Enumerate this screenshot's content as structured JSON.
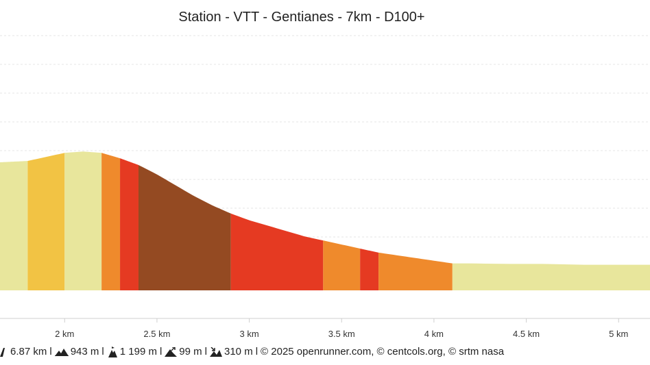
{
  "title": "Station - VTT - Gentianes - 7km - D100+",
  "chart_data": {
    "type": "area",
    "title": "Station - VTT - Gentianes - 7km - D100+",
    "xlabel": "",
    "ylabel": "",
    "x_unit": "km",
    "xlim": [
      1.65,
      5.17
    ],
    "ylim": [
      1130,
      1225
    ],
    "grid": true,
    "x_ticks": [
      {
        "value": 2.0,
        "label": "2 km"
      },
      {
        "value": 2.5,
        "label": "2.5 km"
      },
      {
        "value": 3.0,
        "label": "3 km"
      },
      {
        "value": 3.5,
        "label": "3.5 km"
      },
      {
        "value": 4.0,
        "label": "4 km"
      },
      {
        "value": 4.5,
        "label": "4.5 km"
      },
      {
        "value": 5.0,
        "label": "5 km"
      }
    ],
    "profile": {
      "x": [
        1.65,
        1.8,
        1.9,
        2.0,
        2.1,
        2.2,
        2.3,
        2.4,
        2.5,
        2.6,
        2.7,
        2.8,
        2.9,
        3.0,
        3.1,
        3.2,
        3.3,
        3.4,
        3.5,
        3.6,
        3.7,
        3.8,
        3.9,
        4.0,
        4.1,
        4.2,
        4.4,
        4.6,
        4.8,
        5.0,
        5.17
      ],
      "y": [
        1177.5,
        1178.0,
        1179.5,
        1181.0,
        1181.5,
        1181.0,
        1179.0,
        1176.5,
        1173.0,
        1169.0,
        1165.0,
        1161.5,
        1158.5,
        1156.0,
        1154.0,
        1152.0,
        1150.0,
        1148.5,
        1147.0,
        1145.5,
        1144.0,
        1143.0,
        1142.0,
        1141.0,
        1140.0,
        1140.0,
        1139.8,
        1139.8,
        1139.5,
        1139.5,
        1139.5
      ]
    },
    "segments": [
      {
        "from": 1.65,
        "to": 1.8,
        "color": "#e8e69c"
      },
      {
        "from": 1.8,
        "to": 2.0,
        "color": "#f2c344"
      },
      {
        "from": 2.0,
        "to": 2.2,
        "color": "#e8e69c"
      },
      {
        "from": 2.2,
        "to": 2.3,
        "color": "#ef8a2c"
      },
      {
        "from": 2.3,
        "to": 2.4,
        "color": "#e53a22"
      },
      {
        "from": 2.4,
        "to": 2.9,
        "color": "#944a22"
      },
      {
        "from": 2.9,
        "to": 3.4,
        "color": "#e53a22"
      },
      {
        "from": 3.4,
        "to": 3.6,
        "color": "#ef8a2c"
      },
      {
        "from": 3.6,
        "to": 3.7,
        "color": "#e53a22"
      },
      {
        "from": 3.7,
        "to": 4.1,
        "color": "#ef8a2c"
      },
      {
        "from": 4.1,
        "to": 5.17,
        "color": "#e8e69c"
      }
    ]
  },
  "footer": {
    "distance": "6.87 km",
    "elev_min": "943 m",
    "elev_max": "1 199 m",
    "elev_gain": "99 m",
    "elev_loss": "310 m",
    "separator": "l",
    "credits": "© 2025 openrunner.com, © centcols.org, © srtm nasa"
  }
}
